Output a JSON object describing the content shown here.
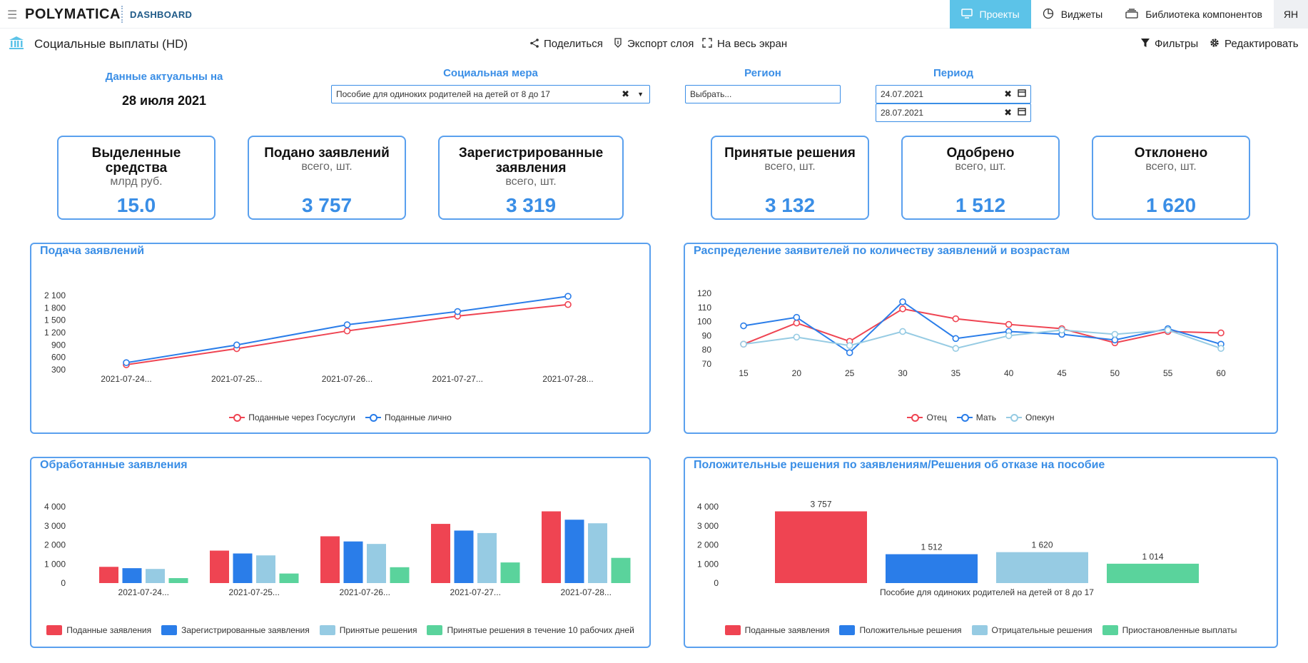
{
  "header": {
    "logo": "POLYMATICA",
    "logo_sub": "DASHBOARD",
    "nav": [
      {
        "label": "Проекты",
        "icon": "monitor-icon"
      },
      {
        "label": "Виджеты",
        "icon": "pie-chart-icon"
      },
      {
        "label": "Библиотека компонентов",
        "icon": "layers-icon"
      }
    ],
    "avatar": "ЯН"
  },
  "toolbar": {
    "title": "Социальные выплаты (HD)",
    "share": "Поделиться",
    "export": "Экспорт слоя",
    "fullscreen": "На весь экран",
    "filters": "Фильтры",
    "edit": "Редактировать"
  },
  "filters": {
    "actual_label": "Данные актуальны на",
    "actual_date": "28 июля 2021",
    "measure_label": "Социальная мера",
    "measure_value": "Пособие для одиноких родителей на детей от 8 до 17",
    "region_label": "Регион",
    "region_placeholder": "Выбрать...",
    "period_label": "Период",
    "period_from": "24.07.2021",
    "period_to": "28.07.2021"
  },
  "kpis": [
    {
      "title": "Выделенные средства",
      "sub": "млрд руб.",
      "value": "15.0"
    },
    {
      "title": "Подано заявлений",
      "sub": "всего, шт.",
      "value": "3 757"
    },
    {
      "title": "Зарегистрированные заявления",
      "sub": "всего, шт.",
      "value": "3 319"
    },
    {
      "title": "Принятые решения",
      "sub": "всего, шт.",
      "value": "3 132"
    },
    {
      "title": "Одобрено",
      "sub": "всего, шт.",
      "value": "1 512"
    },
    {
      "title": "Отклонено",
      "sub": "всего, шт.",
      "value": "1 620"
    }
  ],
  "panels": {
    "p1": "Подача заявлений",
    "p2": "Распределение заявителей по количеству заявлений и возрастам",
    "p3": "Обработанные заявления",
    "p4": "Положительные решения по заявлениям/Решения об отказе на пособие"
  },
  "colors": {
    "red": "#ef4452",
    "blue": "#2a7de9",
    "lightblue": "#96cbe3",
    "green": "#5ad39c"
  },
  "chart_data": [
    {
      "type": "line",
      "title": "Подача заявлений",
      "categories": [
        "2021-07-24...",
        "2021-07-25...",
        "2021-07-26...",
        "2021-07-27...",
        "2021-07-28..."
      ],
      "yticks": [
        "300",
        "600",
        "900",
        "1 200",
        "1 500",
        "1 800",
        "2 100"
      ],
      "ylim": [
        300,
        2100
      ],
      "series": [
        {
          "name": "Поданные через Госуслуги",
          "color": "#ef4452",
          "values": [
            420,
            810,
            1240,
            1600,
            1880
          ]
        },
        {
          "name": "Поданные лично",
          "color": "#2a7de9",
          "values": [
            470,
            900,
            1390,
            1710,
            2080
          ]
        }
      ]
    },
    {
      "type": "line",
      "title": "Распределение заявителей по количеству заявлений и возрастам",
      "categories": [
        "15",
        "20",
        "25",
        "30",
        "35",
        "40",
        "45",
        "50",
        "55",
        "60"
      ],
      "yticks": [
        "70",
        "80",
        "90",
        "100",
        "110",
        "120"
      ],
      "ylim": [
        70,
        120
      ],
      "series": [
        {
          "name": "Отец",
          "color": "#ef4452",
          "values": [
            84,
            99,
            86,
            109,
            102,
            98,
            95,
            85,
            93,
            92
          ]
        },
        {
          "name": "Мать",
          "color": "#2a7de9",
          "values": [
            97,
            103,
            78,
            114,
            88,
            93,
            91,
            87,
            95,
            84
          ]
        },
        {
          "name": "Опекун",
          "color": "#96cbe3",
          "values": [
            84,
            89,
            83,
            93,
            81,
            90,
            94,
            91,
            94,
            81
          ]
        }
      ]
    },
    {
      "type": "bar",
      "title": "Обработанные заявления",
      "categories": [
        "2021-07-24...",
        "2021-07-25...",
        "2021-07-26...",
        "2021-07-27...",
        "2021-07-28..."
      ],
      "yticks": [
        "0",
        "1 000",
        "2 000",
        "3 000",
        "4 000"
      ],
      "ylim": [
        0,
        4000
      ],
      "series": [
        {
          "name": "Поданные заявления",
          "color": "#ef4452",
          "values": [
            850,
            1700,
            2450,
            3100,
            3757
          ]
        },
        {
          "name": "Зарегистрированные заявления",
          "color": "#2a7de9",
          "values": [
            780,
            1550,
            2180,
            2750,
            3319
          ]
        },
        {
          "name": "Принятые решения",
          "color": "#96cbe3",
          "values": [
            740,
            1450,
            2050,
            2620,
            3132
          ]
        },
        {
          "name": "Принятые решения в течение 10 рабочих дней",
          "color": "#5ad39c",
          "values": [
            260,
            500,
            830,
            1080,
            1320
          ]
        }
      ]
    },
    {
      "type": "bar",
      "title": "Положительные решения по заявлениям/Решения об отказе на пособие",
      "categories": [
        "Пособие для одиноких родителей на детей от 8 до 17"
      ],
      "yticks": [
        "0",
        "1 000",
        "2 000",
        "3 000",
        "4 000"
      ],
      "ylim": [
        0,
        4000
      ],
      "series": [
        {
          "name": "Поданные заявления",
          "color": "#ef4452",
          "values": [
            3757
          ],
          "label": "3 757"
        },
        {
          "name": "Положительные решения",
          "color": "#2a7de9",
          "values": [
            1512
          ],
          "label": "1 512"
        },
        {
          "name": "Отрицательные решения",
          "color": "#96cbe3",
          "values": [
            1620
          ],
          "label": "1 620"
        },
        {
          "name": "Приостановленные выплаты",
          "color": "#5ad39c",
          "values": [
            1014
          ],
          "label": "1 014"
        }
      ]
    }
  ]
}
